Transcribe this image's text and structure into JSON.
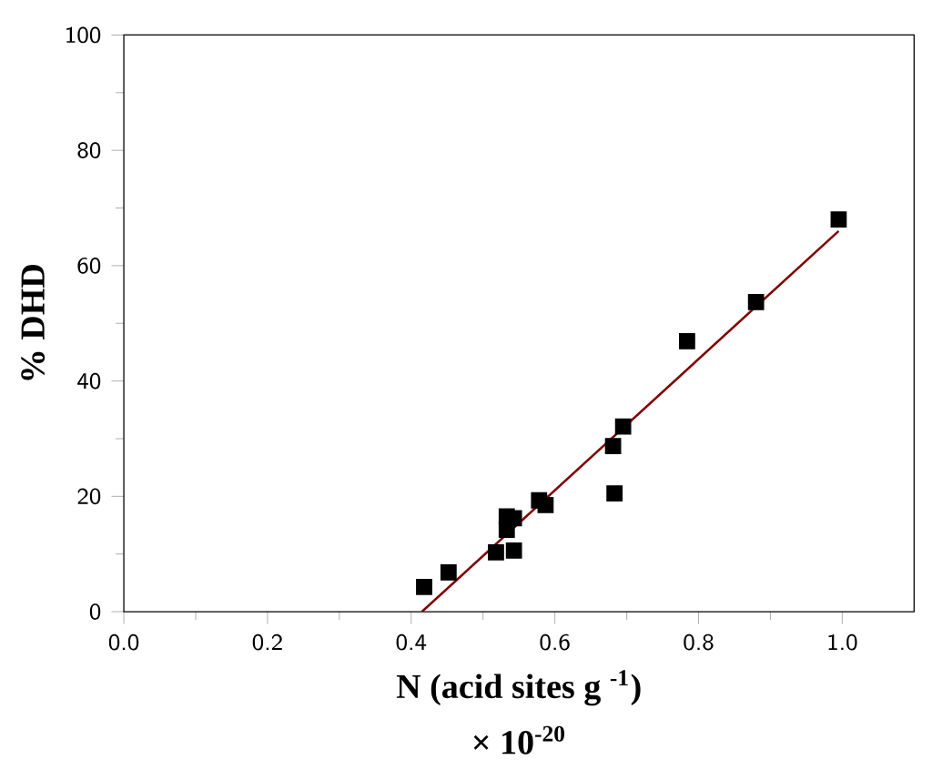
{
  "chart_data": {
    "type": "scatter",
    "xlabel": "N (acid sites g $^{-1}$)",
    "ylabel": "% DHD",
    "annotations": [
      "× 10$^{-20}$"
    ],
    "xlim": [
      0,
      1.1
    ],
    "ylim": [
      0,
      100
    ],
    "xticks": [
      {
        "value": 0,
        "label": "0.0"
      },
      0.2,
      0.4,
      0.6,
      0.8,
      {
        "value": 1,
        "label": "1.0"
      }
    ],
    "yticks": [
      0,
      20,
      40,
      60,
      80,
      100
    ],
    "series": [
      {
        "marker": "square",
        "color": "#000000",
        "x": [
          0.418,
          0.452,
          0.518,
          0.543,
          0.533,
          0.533,
          0.543,
          0.578,
          0.587,
          0.683,
          0.681,
          0.695,
          0.784,
          0.88,
          0.995
        ],
        "values": [
          4.3,
          6.8,
          10.3,
          10.6,
          14.2,
          16.5,
          16.2,
          19.3,
          18.5,
          20.5,
          28.7,
          32.1,
          46.9,
          53.7,
          68
        ]
      },
      {
        "type": "line",
        "marker": "none",
        "color": "#800000",
        "x": [
          0.415,
          0.995
        ],
        "values": [
          0,
          66
        ]
      }
    ]
  }
}
